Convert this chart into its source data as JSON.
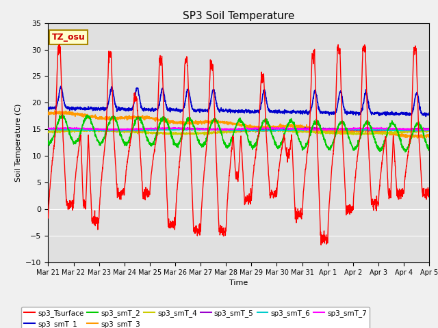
{
  "title": "SP3 Soil Temperature",
  "ylabel": "Soil Temperature (C)",
  "xlabel": "Time",
  "annotation": "TZ_osu",
  "ylim": [
    -10,
    35
  ],
  "xlim": [
    0,
    15
  ],
  "x_tick_labels": [
    "Mar 21",
    "Mar 22",
    "Mar 23",
    "Mar 24",
    "Mar 25",
    "Mar 26",
    "Mar 27",
    "Mar 28",
    "Mar 29",
    "Mar 30",
    "Mar 31",
    "Apr 1",
    "Apr 2",
    "Apr 3",
    "Apr 4",
    "Apr 5"
  ],
  "series_colors": {
    "sp3_Tsurface": "#ff0000",
    "sp3_smT_1": "#0000cc",
    "sp3_smT_2": "#00cc00",
    "sp3_smT_3": "#ff9900",
    "sp3_smT_4": "#cccc00",
    "sp3_smT_5": "#9900cc",
    "sp3_smT_6": "#00cccc",
    "sp3_smT_7": "#ff00ff"
  },
  "fig_facecolor": "#f0f0f0",
  "ax_facecolor": "#e0e0e0"
}
